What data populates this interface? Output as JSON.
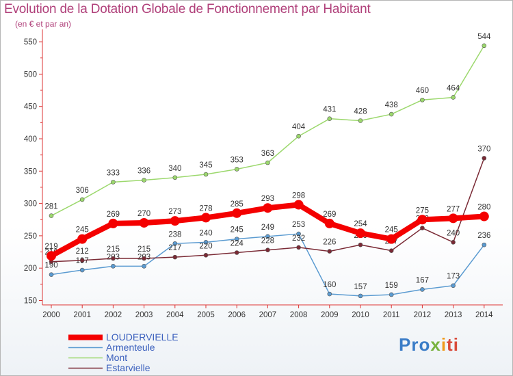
{
  "title": "Evolution de la Dotation Globale de Fonctionnement par Habitant",
  "subtitle": "(en € et par an)",
  "brand": {
    "part1": "Pro",
    "part2": "x",
    "part3": "i",
    "part4": "ti"
  },
  "chart_data": {
    "type": "line",
    "title": "Evolution de la Dotation Globale de Fonctionnement par Habitant",
    "subtitle": "(en € et par an)",
    "x": [
      2000,
      2001,
      2002,
      2003,
      2004,
      2005,
      2006,
      2007,
      2008,
      2009,
      2010,
      2011,
      2012,
      2013,
      2014
    ],
    "ylim": [
      150,
      560
    ],
    "yticks": [
      150,
      200,
      250,
      300,
      350,
      400,
      450,
      500,
      550
    ],
    "grid": false,
    "legend_position": "bottom-left",
    "series": [
      {
        "name": "Mont",
        "color": "#9cd86d",
        "values": [
          281,
          306,
          333,
          336,
          340,
          345,
          353,
          363,
          404,
          431,
          428,
          438,
          460,
          464,
          544
        ]
      },
      {
        "name": "Armenteule",
        "color": "#5b9bd1",
        "values": [
          190,
          197,
          203,
          203,
          238,
          240,
          245,
          249,
          253,
          160,
          157,
          159,
          167,
          173,
          236
        ]
      },
      {
        "name": "Estarvielle",
        "color": "#7a2a35",
        "values": [
          210,
          212,
          215,
          215,
          217,
          220,
          224,
          228,
          232,
          226,
          236,
          227,
          262,
          240,
          370
        ]
      },
      {
        "name": "LOUDERVIELLE",
        "color": "#f40000",
        "values": [
          219,
          245,
          269,
          270,
          273,
          278,
          285,
          293,
          298,
          269,
          254,
          245,
          275,
          277,
          280
        ]
      }
    ]
  }
}
